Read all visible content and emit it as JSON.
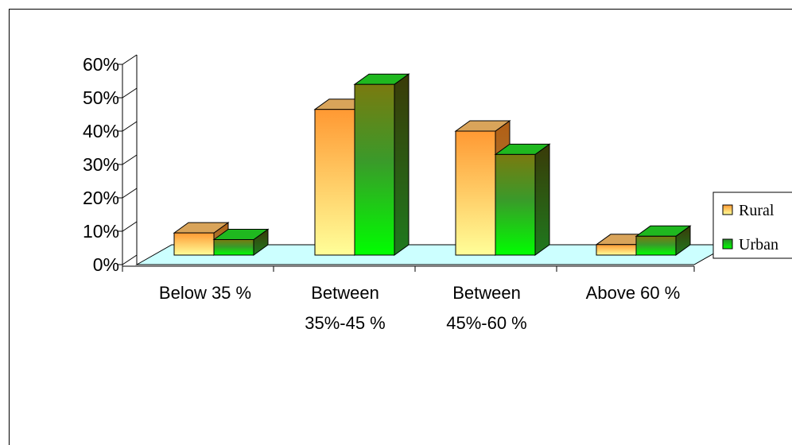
{
  "chart_data": {
    "type": "bar",
    "categories": [
      [
        "Below 35 %"
      ],
      [
        "Between",
        "35%-45 %"
      ],
      [
        "Between",
        "45%-60 %"
      ],
      [
        "Above 60 %"
      ]
    ],
    "series": [
      {
        "name": "Rural",
        "values": [
          9.5,
          46.5,
          40.0,
          6.0
        ]
      },
      {
        "name": "Urban",
        "values": [
          7.5,
          54.0,
          33.0,
          8.5
        ]
      }
    ],
    "y_ticks": [
      "0%",
      "10%",
      "20%",
      "30%",
      "40%",
      "50%",
      "60%"
    ],
    "ylim": [
      0,
      60
    ],
    "legend_position": "right",
    "colors": {
      "floor": "#ccffff",
      "rural_top": "#ff9933",
      "rural_bottom": "#ffff99",
      "rural_side_top": "#c16a1c",
      "rural_side_bottom": "#9a7a3a",
      "rural_cap": "#d9a45a",
      "urban_top": "#7a7a10",
      "urban_mid": "#339933",
      "urban_bottom": "#00ff00",
      "urban_side": "#2f5d1a",
      "urban_cap": "#1fb81f"
    }
  }
}
